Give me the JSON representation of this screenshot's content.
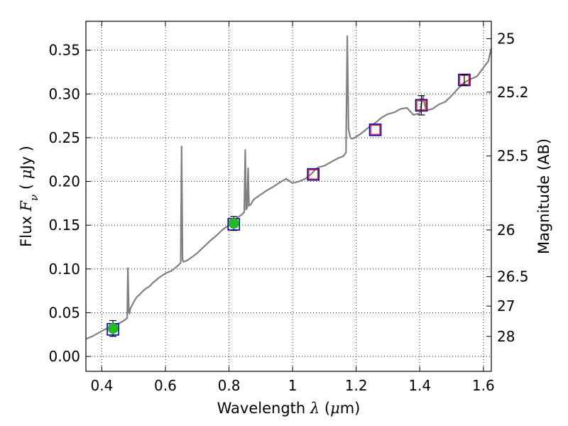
{
  "chart_data": {
    "type": "line",
    "title": "",
    "xlabel": {
      "prefix": "Wavelength  ",
      "symbol": "λ",
      "unit_open": " (",
      "unit_mu": "μ",
      "unit_rest": "m)"
    },
    "ylabel": {
      "prefix": "Flux  ",
      "symbol": "F",
      "sub": "ν",
      "unit_open": "  ( ",
      "unit_mu": "μ",
      "unit_rest": "Jy )"
    },
    "y2label": "Magnitude (AB)",
    "xlim": [
      0.35,
      1.625
    ],
    "ylim": [
      -0.017,
      0.383
    ],
    "grid": true,
    "x_ticks": [
      {
        "value": 0.4,
        "label": "0.4"
      },
      {
        "value": 0.6,
        "label": "0.6"
      },
      {
        "value": 0.8,
        "label": "0.8"
      },
      {
        "value": 1.0,
        "label": "1"
      },
      {
        "value": 1.2,
        "label": "1.2"
      },
      {
        "value": 1.4,
        "label": "1.4"
      },
      {
        "value": 1.6,
        "label": "1.6"
      }
    ],
    "y_ticks": [
      {
        "value": 0.0,
        "label": "0.00"
      },
      {
        "value": 0.05,
        "label": "0.05"
      },
      {
        "value": 0.1,
        "label": "0.10"
      },
      {
        "value": 0.15,
        "label": "0.15"
      },
      {
        "value": 0.2,
        "label": "0.20"
      },
      {
        "value": 0.25,
        "label": "0.25"
      },
      {
        "value": 0.3,
        "label": "0.30"
      },
      {
        "value": 0.35,
        "label": "0.35"
      }
    ],
    "y2_ticks": [
      {
        "mag": 25,
        "label": "25"
      },
      {
        "mag": 25.2,
        "label": "25.2"
      },
      {
        "mag": 25.5,
        "label": "25.5"
      },
      {
        "mag": 26,
        "label": "26"
      },
      {
        "mag": 26.5,
        "label": "26.5"
      },
      {
        "mag": 27,
        "label": "27"
      },
      {
        "mag": 28,
        "label": "28"
      }
    ],
    "series": [
      {
        "type": "line",
        "color": "#808080",
        "x": [
          0.35,
          0.37,
          0.39,
          0.41,
          0.43,
          0.45,
          0.47,
          0.48,
          0.482,
          0.485,
          0.487,
          0.49,
          0.5,
          0.51,
          0.52,
          0.53,
          0.54,
          0.55,
          0.56,
          0.58,
          0.6,
          0.62,
          0.64,
          0.648,
          0.651,
          0.654,
          0.657,
          0.67,
          0.7,
          0.72,
          0.74,
          0.76,
          0.78,
          0.8,
          0.82,
          0.84,
          0.848,
          0.851,
          0.854,
          0.857,
          0.86,
          0.863,
          0.866,
          0.869,
          0.872,
          0.875,
          0.88,
          0.9,
          0.92,
          0.94,
          0.96,
          0.98,
          1.0,
          1.02,
          1.04,
          1.05,
          1.06,
          1.07,
          1.08,
          1.09,
          1.1,
          1.12,
          1.14,
          1.16,
          1.168,
          1.172,
          1.176,
          1.179,
          1.182,
          1.185,
          1.19,
          1.2,
          1.22,
          1.24,
          1.26,
          1.28,
          1.3,
          1.32,
          1.34,
          1.36,
          1.38,
          1.4,
          1.41,
          1.42,
          1.44,
          1.46,
          1.48,
          1.5,
          1.52,
          1.54,
          1.56,
          1.58,
          1.6,
          1.615,
          1.625
        ],
        "y": [
          0.02,
          0.023,
          0.027,
          0.031,
          0.034,
          0.037,
          0.041,
          0.044,
          0.101,
          0.05,
          0.049,
          0.055,
          0.062,
          0.068,
          0.071,
          0.075,
          0.078,
          0.08,
          0.084,
          0.09,
          0.095,
          0.098,
          0.104,
          0.107,
          0.24,
          0.11,
          0.108,
          0.11,
          0.118,
          0.125,
          0.132,
          0.138,
          0.145,
          0.15,
          0.157,
          0.162,
          0.165,
          0.236,
          0.168,
          0.17,
          0.215,
          0.172,
          0.173,
          0.174,
          0.176,
          0.178,
          0.18,
          0.185,
          0.19,
          0.194,
          0.199,
          0.203,
          0.198,
          0.2,
          0.203,
          0.206,
          0.209,
          0.213,
          0.216,
          0.217,
          0.218,
          0.222,
          0.226,
          0.229,
          0.233,
          0.366,
          0.26,
          0.254,
          0.25,
          0.249,
          0.249,
          0.251,
          0.256,
          0.262,
          0.267,
          0.273,
          0.277,
          0.279,
          0.283,
          0.284,
          0.276,
          0.278,
          0.297,
          0.281,
          0.283,
          0.288,
          0.291,
          0.298,
          0.306,
          0.313,
          0.317,
          0.32,
          0.33,
          0.337,
          0.352
        ]
      },
      {
        "type": "scatter",
        "marker": "square-open",
        "color": "#0000cc",
        "x": [
          0.435,
          0.815,
          1.065,
          1.26,
          1.405,
          1.54
        ],
        "y": [
          0.031,
          0.151,
          0.208,
          0.259,
          0.287,
          0.316
        ]
      },
      {
        "type": "scatter",
        "marker": "square-open",
        "color": "#e03030",
        "x": [
          1.065,
          1.26,
          1.405,
          1.54
        ],
        "y": [
          0.208,
          0.259,
          0.287,
          0.316
        ]
      },
      {
        "type": "errorbar",
        "marker": "circle",
        "color": "#22bb22",
        "x": [
          0.435,
          0.815
        ],
        "y": [
          0.032,
          0.152
        ],
        "yerr": [
          0.009,
          0.008
        ]
      },
      {
        "type": "errorbar",
        "marker": "none",
        "color": "#e03030",
        "x": [
          1.405,
          1.54
        ],
        "y": [
          0.287,
          0.316
        ],
        "yerr": [
          0.011,
          0.006
        ]
      }
    ]
  }
}
